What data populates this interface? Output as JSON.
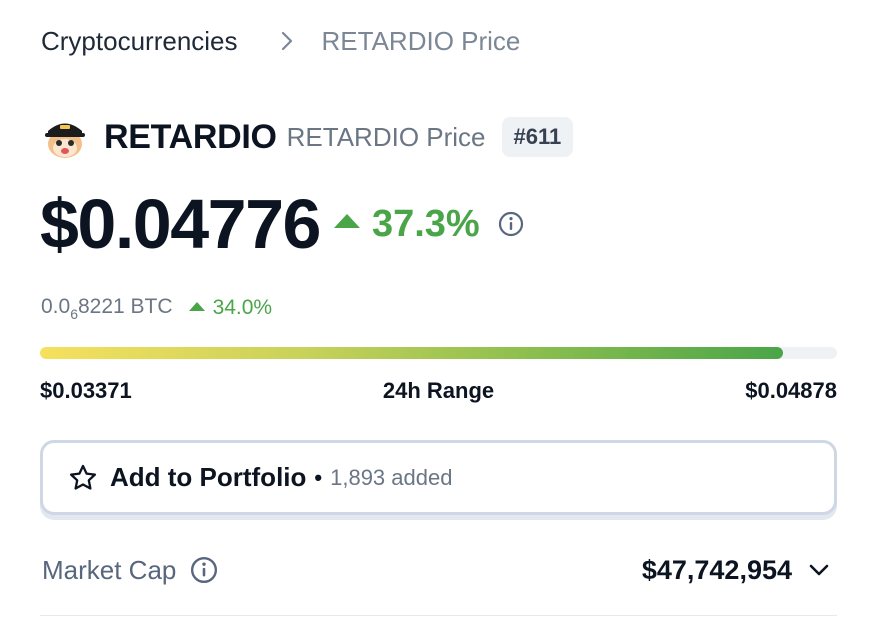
{
  "breadcrumb": {
    "root": "Cryptocurrencies",
    "current": "RETARDIO Price"
  },
  "coin": {
    "name": "RETARDIO",
    "subtitle": "RETARDIO Price",
    "rank": "#611",
    "logo_icon": "retardio-logo-icon"
  },
  "price": {
    "value": "$0.04776",
    "change_pct": "37.3%",
    "change_direction": "up",
    "btc_prefix": "0.0",
    "btc_zero_count": "6",
    "btc_digits": "8221",
    "btc_unit": " BTC",
    "btc_change_pct": "34.0%"
  },
  "range": {
    "low": "$0.03371",
    "label": "24h Range",
    "high": "$0.04878",
    "position": 0.932
  },
  "portfolio": {
    "label": "Add to Portfolio",
    "separator": "•",
    "count_text": "1,893 added"
  },
  "market_cap": {
    "label": "Market Cap",
    "value": "$47,742,954"
  },
  "colors": {
    "positive": "#4aa549",
    "text_primary": "#0d1421",
    "text_secondary": "#6b7685",
    "range_start": "#f6e05e"
  }
}
